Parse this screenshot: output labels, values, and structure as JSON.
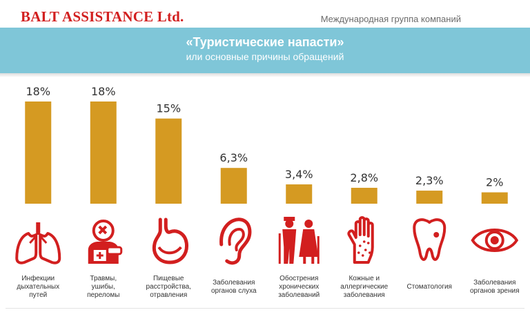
{
  "header": {
    "brand": "BALT ASSISTANCE Ltd.",
    "tagline": "Международная группа компаний"
  },
  "banner": {
    "title": "«Туристические напасти»",
    "subtitle": "или основные причины обращений"
  },
  "colors": {
    "bar": "#d59a22",
    "icon": "#d21f1f",
    "banner": "#7fc6d8",
    "brand": "#d21f1f"
  },
  "chart_data": {
    "type": "bar",
    "title": "«Туристические напасти»",
    "subtitle": "или основные причины обращений",
    "categories": [
      [
        "Инфекции",
        "дыхательных",
        "путей"
      ],
      [
        "Травмы,",
        "ушибы,",
        "переломы"
      ],
      [
        "Пищевые",
        "расстройства,",
        "отравления"
      ],
      [
        "Заболевания",
        "органов слуха"
      ],
      [
        "Обострения",
        "хронических",
        "заболеваний"
      ],
      [
        "Кожные и",
        "аллергические",
        "заболевания"
      ],
      [
        "Стоматология"
      ],
      [
        "Заболевания",
        "органов зрения"
      ]
    ],
    "values": [
      18,
      18,
      15,
      6.3,
      3.4,
      2.8,
      2.3,
      2
    ],
    "value_labels": [
      "18%",
      "18%",
      "15%",
      "6,3%",
      "3,4%",
      "2,8%",
      "2,3%",
      "2%"
    ],
    "icons": [
      "lungs-icon",
      "injured-person-icon",
      "stomach-icon",
      "ear-icon",
      "elderly-couple-icon",
      "rash-hand-icon",
      "tooth-icon",
      "eye-icon"
    ],
    "ylim": [
      0,
      18
    ],
    "grid": false,
    "legend": "none"
  }
}
